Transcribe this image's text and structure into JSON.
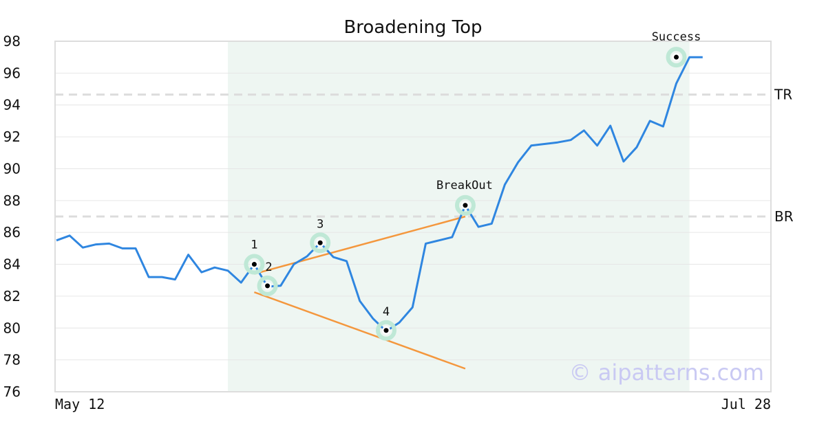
{
  "chart_data": {
    "type": "line",
    "title": "Broadening Top",
    "ylim": [
      76,
      98
    ],
    "y_ticks": [
      76,
      78,
      80,
      82,
      84,
      86,
      88,
      90,
      92,
      94,
      96,
      98
    ],
    "x_range": [
      0,
      50
    ],
    "x_tick_labels": [
      {
        "x": 0,
        "label": "May 12"
      },
      {
        "x": 50,
        "label": "Jul 28"
      }
    ],
    "grid": "horizontal",
    "series": [
      {
        "color": "#2f86e0",
        "values": [
          85.5,
          85.8,
          85.05,
          85.25,
          85.3,
          85.0,
          85.0,
          83.2,
          83.2,
          83.05,
          84.6,
          83.5,
          83.8,
          83.6,
          82.85,
          84.0,
          82.6,
          82.65,
          84.0,
          84.5,
          85.35,
          84.45,
          84.2,
          81.7,
          80.6,
          79.8,
          80.35,
          81.3,
          85.3,
          85.5,
          85.7,
          87.7,
          86.35,
          86.55,
          89.0,
          90.4,
          91.45,
          91.55,
          91.65,
          91.8,
          92.4,
          91.45,
          92.7,
          90.45,
          91.35,
          93.0,
          92.65,
          95.35,
          97.0,
          97.0
        ]
      }
    ],
    "highlight_region": {
      "x_start": 13,
      "x_end": 48,
      "color": "#eef6f2"
    },
    "levels": [
      {
        "label": "TR",
        "y": 94.65
      },
      {
        "label": "BR",
        "y": 87.0
      }
    ],
    "trend_lines": [
      {
        "color": "#f4973d",
        "from": [
          15,
          83.4
        ],
        "to": [
          31,
          87.0
        ]
      },
      {
        "color": "#f4973d",
        "from": [
          15,
          82.25
        ],
        "to": [
          31,
          77.45
        ]
      }
    ],
    "annotations": [
      {
        "label": "1",
        "x": 15,
        "y": 84.0,
        "label_pos": "above"
      },
      {
        "label": "2",
        "x": 16,
        "y": 82.65,
        "label_pos": "above"
      },
      {
        "label": "3",
        "x": 20,
        "y": 85.35,
        "label_pos": "above"
      },
      {
        "label": "4",
        "x": 25,
        "y": 79.85,
        "label_pos": "above"
      },
      {
        "label": "BreakOut",
        "x": 31,
        "y": 87.7,
        "label_pos": "above"
      },
      {
        "label": "Success",
        "x": 47,
        "y": 97.0,
        "label_pos": "above"
      }
    ],
    "watermark": "© aipatterns.com"
  }
}
